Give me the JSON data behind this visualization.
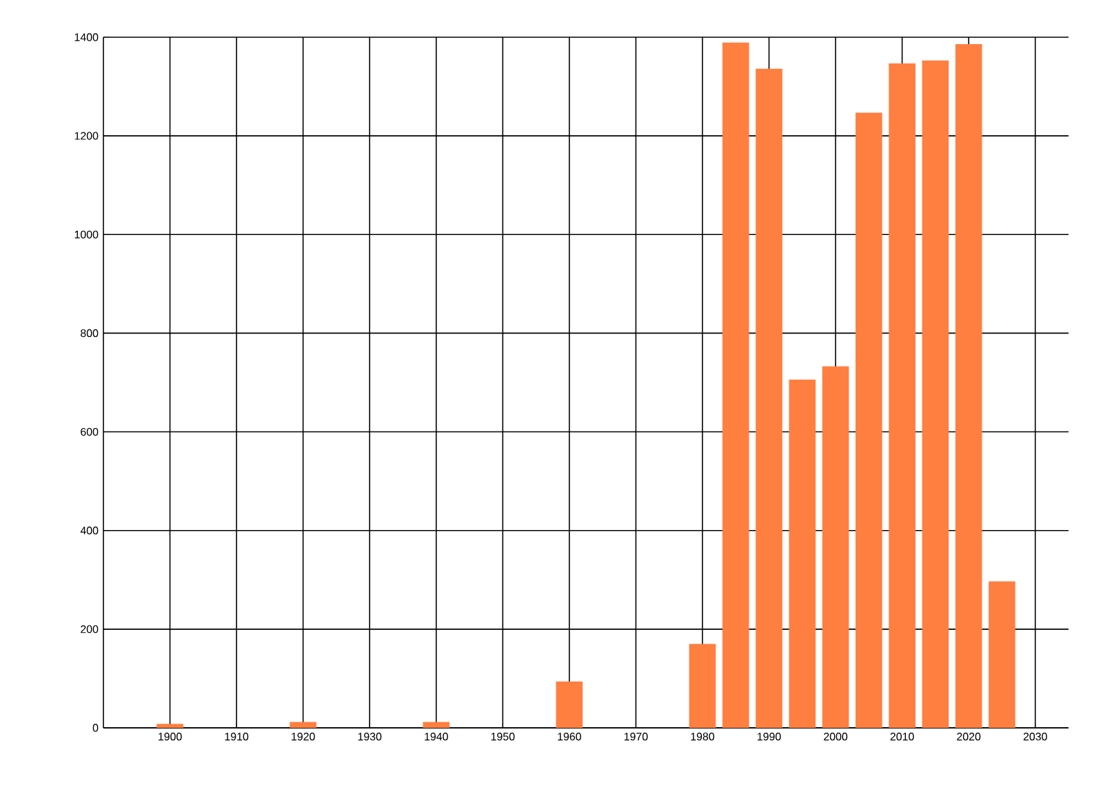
{
  "chart_data": {
    "type": "bar",
    "color": "#ff7f40",
    "x": [
      1900,
      1920,
      1940,
      1960,
      1980,
      1985,
      1990,
      1995,
      2000,
      2005,
      2010,
      2015,
      2020,
      2025
    ],
    "values": [
      8,
      12,
      12,
      94,
      170,
      1389,
      1336,
      706,
      733,
      1247,
      1347,
      1353,
      1386,
      297
    ],
    "xlim": [
      1890,
      2035
    ],
    "xticks": [
      1900,
      1910,
      1920,
      1930,
      1940,
      1950,
      1960,
      1970,
      1980,
      1990,
      2000,
      2010,
      2020,
      2030
    ],
    "ylim": [
      0,
      1400
    ],
    "yticks": [
      0,
      200,
      400,
      600,
      800,
      1000,
      1200,
      1400
    ],
    "grid": true
  }
}
